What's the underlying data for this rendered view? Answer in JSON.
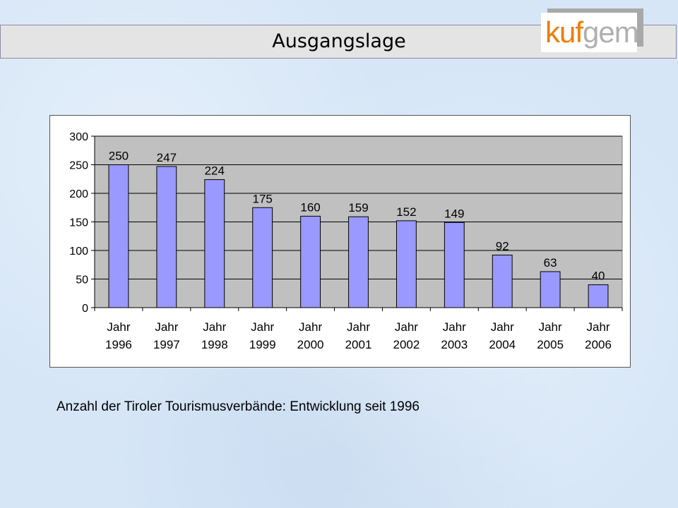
{
  "header": {
    "title": "Ausgangslage",
    "logo_part1": "kuf",
    "logo_part2": "gem"
  },
  "caption": "Anzahl der Tiroler Tourismusverbände: Entwicklung seit 1996",
  "colors": {
    "bar": "#9999ff",
    "plot_bg": "#c0c0c0",
    "title_bg": "#e4e4e4",
    "logo_accent": "#f07c00"
  },
  "chart_data": {
    "type": "bar",
    "categories": [
      [
        "Jahr",
        "1996"
      ],
      [
        "Jahr",
        "1997"
      ],
      [
        "Jahr",
        "1998"
      ],
      [
        "Jahr",
        "1999"
      ],
      [
        "Jahr",
        "2000"
      ],
      [
        "Jahr",
        "2001"
      ],
      [
        "Jahr",
        "2002"
      ],
      [
        "Jahr",
        "2003"
      ],
      [
        "Jahr",
        "2004"
      ],
      [
        "Jahr",
        "2005"
      ],
      [
        "Jahr",
        "2006"
      ]
    ],
    "values": [
      250,
      247,
      224,
      175,
      160,
      159,
      152,
      149,
      92,
      63,
      40
    ],
    "ylim": [
      0,
      300
    ],
    "yticks": [
      0,
      50,
      100,
      150,
      200,
      250,
      300
    ],
    "grid": true,
    "legend": false,
    "title": "",
    "xlabel": "",
    "ylabel": ""
  }
}
